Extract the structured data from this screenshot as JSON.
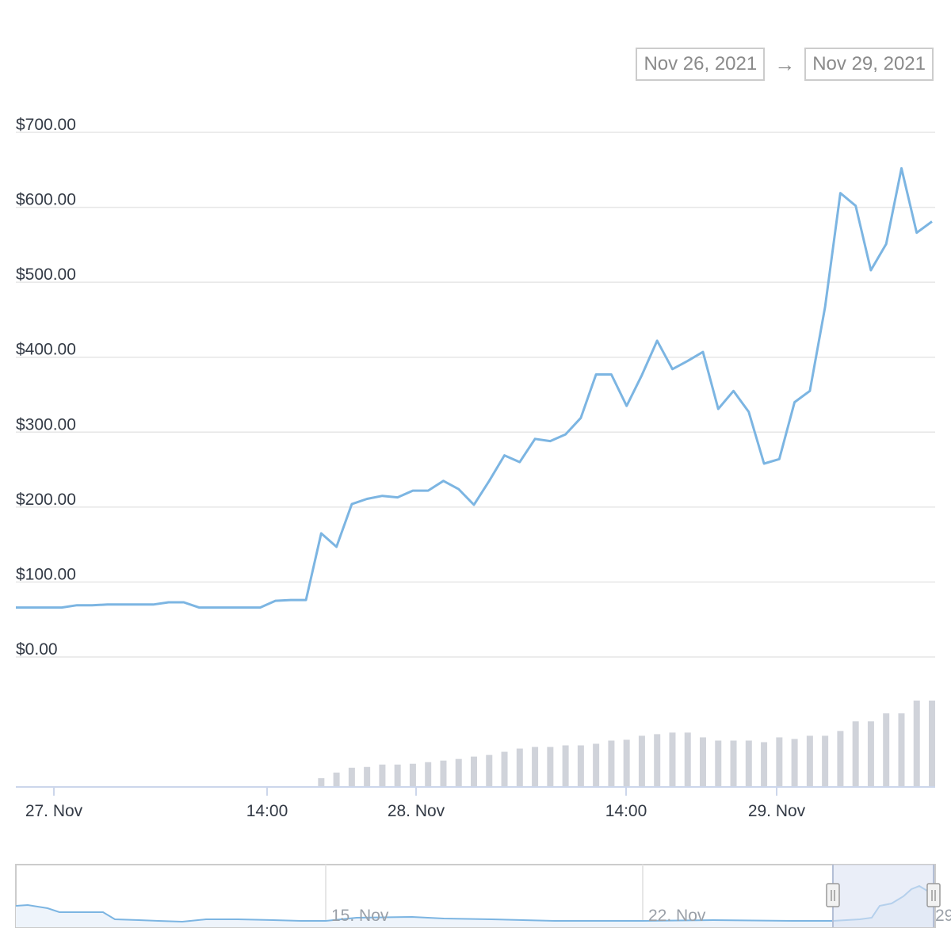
{
  "range_selector": {
    "from": "Nov 26, 2021",
    "arrow": "→",
    "to": "Nov 29, 2021"
  },
  "colors": {
    "line": "#7cb5e2",
    "volume": "#d0d3da",
    "grid": "#e6e6e6",
    "navigator_mask": "#dce3f3"
  },
  "chart_data": {
    "type": "line",
    "y_axis": {
      "min": 0,
      "max": 700,
      "ticks": [
        "$0.00",
        "$100.00",
        "$200.00",
        "$300.00",
        "$400.00",
        "$500.00",
        "$600.00",
        "$700.00"
      ]
    },
    "x_axis": {
      "ticks": [
        "27. Nov",
        "14:00",
        "28. Nov",
        "14:00",
        "29. Nov"
      ]
    },
    "grid": true,
    "price": [
      66,
      66,
      66,
      66,
      69,
      69,
      70,
      70,
      70,
      70,
      73,
      73,
      66,
      66,
      66,
      66,
      66,
      75,
      76,
      76,
      165,
      147,
      204,
      211,
      215,
      213,
      222,
      222,
      235,
      224,
      203,
      235,
      269,
      260,
      291,
      288,
      297,
      319,
      377,
      377,
      335,
      376,
      422,
      384,
      395,
      407,
      331,
      355,
      327,
      258,
      264,
      340,
      355,
      467,
      619,
      602,
      516,
      551,
      652,
      566,
      581
    ],
    "volume": [
      0,
      0,
      0,
      0,
      0,
      0,
      0,
      0,
      0,
      0,
      0,
      0,
      0,
      0,
      0,
      0,
      0,
      0,
      0,
      0,
      11,
      18,
      24,
      25,
      28,
      28,
      29,
      31,
      33,
      35,
      38,
      40,
      44,
      48,
      50,
      50,
      52,
      52,
      54,
      58,
      59,
      64,
      66,
      68,
      68,
      62,
      58,
      58,
      58,
      56,
      62,
      60,
      64,
      64,
      70,
      82,
      82,
      92,
      92,
      108,
      108
    ]
  },
  "navigator": {
    "ticks": [
      "15. Nov",
      "22. Nov",
      "29"
    ]
  }
}
